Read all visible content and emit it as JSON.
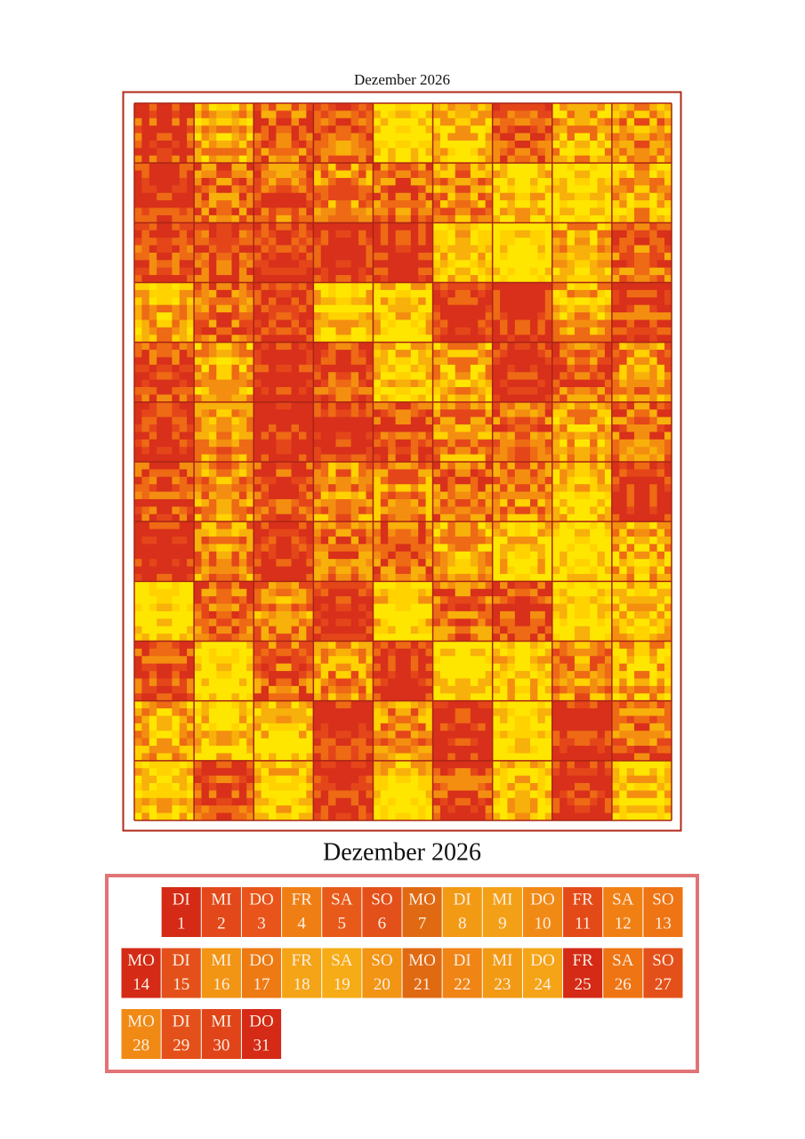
{
  "poster_title": "Dezember 2026",
  "calendar": {
    "title": "Dezember 2026",
    "days": [
      {
        "weekday": "DI",
        "day": 1,
        "color": "#d42a16"
      },
      {
        "weekday": "MI",
        "day": 2,
        "color": "#e2481a"
      },
      {
        "weekday": "DO",
        "day": 3,
        "color": "#e9541a"
      },
      {
        "weekday": "FR",
        "day": 4,
        "color": "#ef7e14"
      },
      {
        "weekday": "SA",
        "day": 5,
        "color": "#e85a1a"
      },
      {
        "weekday": "SO",
        "day": 6,
        "color": "#e4501a"
      },
      {
        "weekday": "MO",
        "day": 7,
        "color": "#e06a12"
      },
      {
        "weekday": "DI",
        "day": 8,
        "color": "#f29a14"
      },
      {
        "weekday": "MI",
        "day": 9,
        "color": "#f4a016"
      },
      {
        "weekday": "DO",
        "day": 10,
        "color": "#f08a14"
      },
      {
        "weekday": "FR",
        "day": 11,
        "color": "#e44a18"
      },
      {
        "weekday": "SA",
        "day": 12,
        "color": "#f08014"
      },
      {
        "weekday": "SO",
        "day": 13,
        "color": "#ee7414"
      },
      {
        "weekday": "MO",
        "day": 14,
        "color": "#d42a16"
      },
      {
        "weekday": "DI",
        "day": 15,
        "color": "#e4501a"
      },
      {
        "weekday": "MI",
        "day": 16,
        "color": "#f29414"
      },
      {
        "weekday": "DO",
        "day": 17,
        "color": "#ee7a14"
      },
      {
        "weekday": "FR",
        "day": 18,
        "color": "#f4a416"
      },
      {
        "weekday": "SA",
        "day": 19,
        "color": "#f6ac16"
      },
      {
        "weekday": "SO",
        "day": 20,
        "color": "#f29414"
      },
      {
        "weekday": "MO",
        "day": 21,
        "color": "#e06a12"
      },
      {
        "weekday": "DI",
        "day": 22,
        "color": "#f08414"
      },
      {
        "weekday": "MI",
        "day": 23,
        "color": "#f29a14"
      },
      {
        "weekday": "DO",
        "day": 24,
        "color": "#f4a416"
      },
      {
        "weekday": "FR",
        "day": 25,
        "color": "#d42a16"
      },
      {
        "weekday": "SA",
        "day": 26,
        "color": "#ee7414"
      },
      {
        "weekday": "SO",
        "day": 27,
        "color": "#e4501a"
      },
      {
        "weekday": "MO",
        "day": 28,
        "color": "#f08a14"
      },
      {
        "weekday": "DI",
        "day": 29,
        "color": "#e4501a"
      },
      {
        "weekday": "MI",
        "day": 30,
        "color": "#e04418"
      },
      {
        "weekday": "DO",
        "day": 31,
        "color": "#d42a16"
      }
    ]
  }
}
